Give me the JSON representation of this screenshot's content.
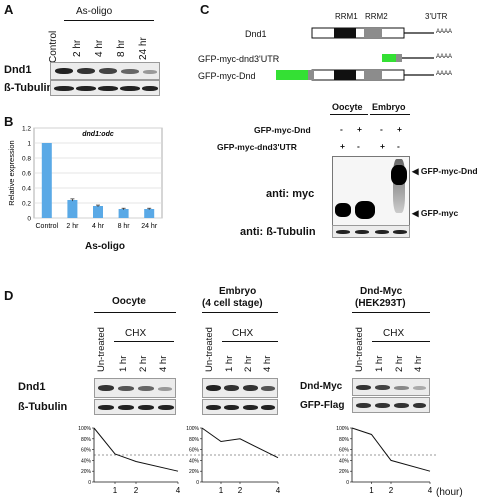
{
  "panelA": {
    "label": "A",
    "group_label": "As-oligo",
    "lanes": [
      "Control",
      "2 hr",
      "4 hr",
      "8 hr",
      "24 hr"
    ],
    "rows": [
      "Dnd1",
      "ß-Tubulin"
    ],
    "dnd1_band_intensity": [
      0.95,
      0.85,
      0.75,
      0.55,
      0.3
    ],
    "tubulin_band_intensity": [
      0.95,
      0.95,
      0.95,
      0.95,
      0.95
    ]
  },
  "panelB": {
    "label": "B",
    "group_label": "As-oligo"
  },
  "chart_data": {
    "type": "bar",
    "title": "dnd1:odc",
    "categories": [
      "Control",
      "2 hr",
      "4 hr",
      "8 hr",
      "24 hr"
    ],
    "values": [
      1.0,
      0.24,
      0.16,
      0.12,
      0.12
    ],
    "errors": [
      0.0,
      0.015,
      0.012,
      0.01,
      0.01
    ],
    "ylabel": "Relative expression",
    "xlabel": "As-oligo",
    "ylim": [
      0,
      1.2
    ],
    "yticks": [
      0,
      0.2,
      0.4,
      0.6,
      0.8,
      1,
      1.2
    ],
    "grid": true,
    "color": "#5aa9e6"
  },
  "panelC": {
    "label": "C",
    "constructs": [
      "Dnd1",
      "GFP-myc-dnd3'UTR",
      "GFP-myc-Dnd"
    ],
    "domains": [
      "RRM1",
      "RRM2",
      "3'UTR"
    ],
    "polyA": "AAAA",
    "group_labels": [
      "Oocyte",
      "Embryo"
    ],
    "sample_rows": [
      {
        "label": "GFP-myc-Dnd",
        "signs": [
          "-",
          "+",
          "-",
          "+"
        ]
      },
      {
        "label": "GFP-myc-dnd3'UTR",
        "signs": [
          "+",
          "-",
          "+",
          "-"
        ]
      }
    ],
    "blot_labels": [
      "anti: myc",
      "anti: ß-Tubulin"
    ],
    "arrows": [
      "GFP-myc-Dnd",
      "GFP-myc"
    ],
    "gfp_color": "#34e034"
  },
  "panelD": {
    "label": "D",
    "unit_label": "(hour)",
    "groups": [
      {
        "title": "Oocyte",
        "subtitle": "",
        "lanes": [
          "Un-treated",
          "1 hr",
          "2 hr",
          "4 hr"
        ],
        "treatment": "CHX",
        "rows": [
          "Dnd1",
          "ß-Tubulin"
        ],
        "series": [
          1.0,
          0.52,
          0.38,
          0.2
        ]
      },
      {
        "title": "Embryo",
        "subtitle": "(4 cell stage)",
        "lanes": [
          "Un-treated",
          "1 hr",
          "2 hr",
          "4 hr"
        ],
        "treatment": "CHX",
        "rows": [
          "",
          ""
        ],
        "series": [
          1.0,
          0.75,
          0.8,
          0.45
        ]
      },
      {
        "title": "Dnd-Myc",
        "subtitle": "(HEK293T)",
        "lanes": [
          "Un-treated",
          "1 hr",
          "2 hr",
          "4 hr"
        ],
        "treatment": "CHX",
        "rows": [
          "Dnd-Myc",
          "GFP-Flag"
        ],
        "series": [
          1.0,
          0.88,
          0.4,
          0.2
        ]
      }
    ],
    "x_ticks": [
      "1",
      "2",
      "4"
    ],
    "y_ticks": [
      "0",
      "20%",
      "40%",
      "60%",
      "80%",
      "100%"
    ]
  }
}
